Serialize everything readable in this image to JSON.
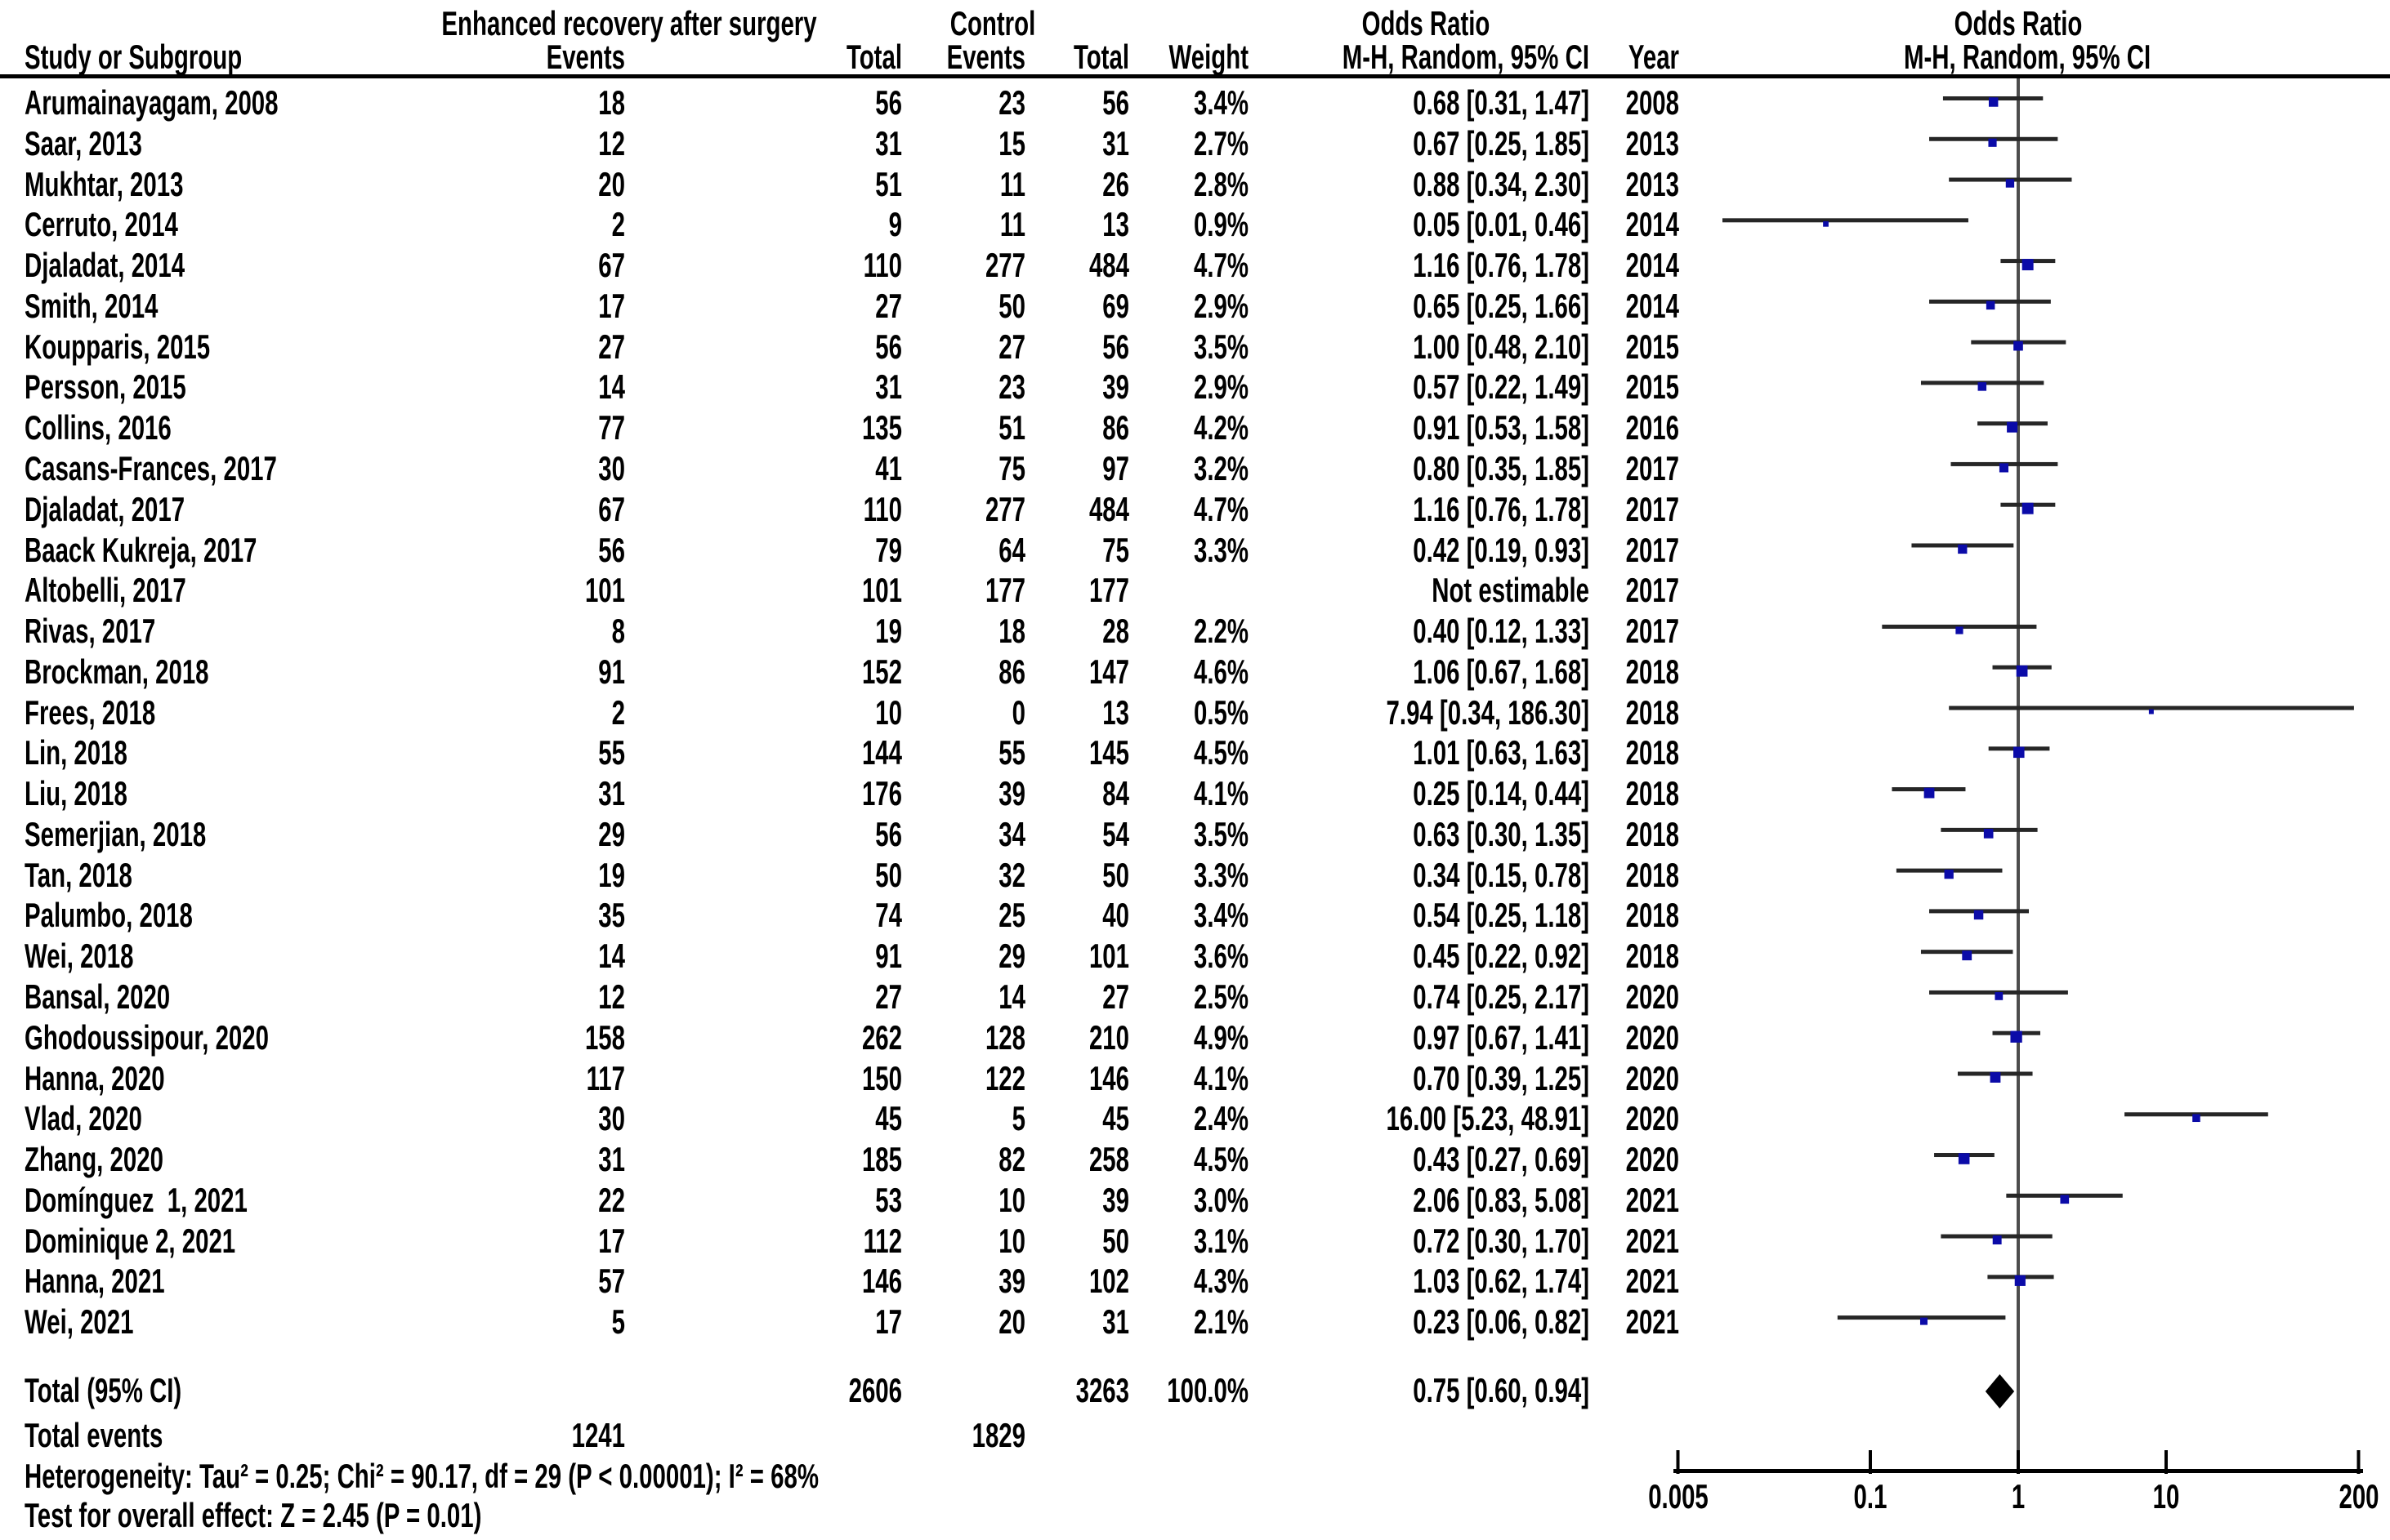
{
  "header": {
    "group_experimental": "Enhanced recovery after surgery",
    "group_control": "Control",
    "or_stat_title": "Odds Ratio",
    "or_plot_title": "Odds Ratio",
    "col_study": "Study or Subgroup",
    "col_events_experimental": "Events",
    "col_total_experimental": "Total",
    "col_events_control": "Events",
    "col_total_control": "Total",
    "col_weight": "Weight",
    "col_method": "M-H, Random, 95% CI",
    "col_year": "Year",
    "col_method_plot": "M-H, Random, 95% CI"
  },
  "footer": {
    "heterogeneity": "Heterogeneity: Tau² = 0.25; Chi² = 90.17, df = 29 (P < 0.00001); I² = 68%",
    "overall_effect": "Test for overall effect: Z = 2.45 (P = 0.01)"
  },
  "colors": {
    "marker": "#0b0ba8",
    "ci_line": "#262626",
    "center_line": "#4d4d4d",
    "axis_line": "#000000",
    "diamond": "#000000",
    "header_rule": "#000000"
  },
  "chart_data": {
    "type": "forest",
    "effect_measure": "Odds Ratio",
    "method": "M-H, Random, 95% CI",
    "x_axis": {
      "scale": "log",
      "min": 0.005,
      "max": 200,
      "ticks": [
        0.005,
        0.1,
        1,
        10,
        200
      ],
      "tick_labels": [
        "0.005",
        "0.1",
        "1",
        "10",
        "200"
      ]
    },
    "studies": [
      {
        "name": "Arumainayagam, 2008",
        "events1": "18",
        "total1": "56",
        "events2": "23",
        "total2": "56",
        "weight": "3.4%",
        "weight_pct": 3.4,
        "or_text": "0.68 [0.31, 1.47]",
        "year": "2008",
        "or": 0.68,
        "ci_low": 0.31,
        "ci_high": 1.47
      },
      {
        "name": "Saar, 2013",
        "events1": "12",
        "total1": "31",
        "events2": "15",
        "total2": "31",
        "weight": "2.7%",
        "weight_pct": 2.7,
        "or_text": "0.67 [0.25, 1.85]",
        "year": "2013",
        "or": 0.67,
        "ci_low": 0.25,
        "ci_high": 1.85
      },
      {
        "name": "Mukhtar, 2013",
        "events1": "20",
        "total1": "51",
        "events2": "11",
        "total2": "26",
        "weight": "2.8%",
        "weight_pct": 2.8,
        "or_text": "0.88 [0.34, 2.30]",
        "year": "2013",
        "or": 0.88,
        "ci_low": 0.34,
        "ci_high": 2.3
      },
      {
        "name": "Cerruto, 2014",
        "events1": "2",
        "total1": "9",
        "events2": "11",
        "total2": "13",
        "weight": "0.9%",
        "weight_pct": 0.9,
        "or_text": "0.05 [0.01, 0.46]",
        "year": "2014",
        "or": 0.05,
        "ci_low": 0.01,
        "ci_high": 0.46
      },
      {
        "name": "Djaladat, 2014",
        "events1": "67",
        "total1": "110",
        "events2": "277",
        "total2": "484",
        "weight": "4.7%",
        "weight_pct": 4.7,
        "or_text": "1.16 [0.76, 1.78]",
        "year": "2014",
        "or": 1.16,
        "ci_low": 0.76,
        "ci_high": 1.78
      },
      {
        "name": "Smith, 2014",
        "events1": "17",
        "total1": "27",
        "events2": "50",
        "total2": "69",
        "weight": "2.9%",
        "weight_pct": 2.9,
        "or_text": "0.65 [0.25, 1.66]",
        "year": "2014",
        "or": 0.65,
        "ci_low": 0.25,
        "ci_high": 1.66
      },
      {
        "name": "Koupparis, 2015",
        "events1": "27",
        "total1": "56",
        "events2": "27",
        "total2": "56",
        "weight": "3.5%",
        "weight_pct": 3.5,
        "or_text": "1.00 [0.48, 2.10]",
        "year": "2015",
        "or": 1.0,
        "ci_low": 0.48,
        "ci_high": 2.1
      },
      {
        "name": "Persson, 2015",
        "events1": "14",
        "total1": "31",
        "events2": "23",
        "total2": "39",
        "weight": "2.9%",
        "weight_pct": 2.9,
        "or_text": "0.57 [0.22, 1.49]",
        "year": "2015",
        "or": 0.57,
        "ci_low": 0.22,
        "ci_high": 1.49
      },
      {
        "name": "Collins, 2016",
        "events1": "77",
        "total1": "135",
        "events2": "51",
        "total2": "86",
        "weight": "4.2%",
        "weight_pct": 4.2,
        "or_text": "0.91 [0.53, 1.58]",
        "year": "2016",
        "or": 0.91,
        "ci_low": 0.53,
        "ci_high": 1.58
      },
      {
        "name": "Casans-Frances, 2017",
        "events1": "30",
        "total1": "41",
        "events2": "75",
        "total2": "97",
        "weight": "3.2%",
        "weight_pct": 3.2,
        "or_text": "0.80 [0.35, 1.85]",
        "year": "2017",
        "or": 0.8,
        "ci_low": 0.35,
        "ci_high": 1.85
      },
      {
        "name": "Djaladat, 2017",
        "events1": "67",
        "total1": "110",
        "events2": "277",
        "total2": "484",
        "weight": "4.7%",
        "weight_pct": 4.7,
        "or_text": "1.16 [0.76, 1.78]",
        "year": "2017",
        "or": 1.16,
        "ci_low": 0.76,
        "ci_high": 1.78
      },
      {
        "name": "Baack Kukreja, 2017",
        "events1": "56",
        "total1": "79",
        "events2": "64",
        "total2": "75",
        "weight": "3.3%",
        "weight_pct": 3.3,
        "or_text": "0.42 [0.19, 0.93]",
        "year": "2017",
        "or": 0.42,
        "ci_low": 0.19,
        "ci_high": 0.93
      },
      {
        "name": "Altobelli, 2017",
        "events1": "101",
        "total1": "101",
        "events2": "177",
        "total2": "177",
        "weight": "",
        "weight_pct": null,
        "or_text": "Not estimable",
        "year": "2017",
        "or": null,
        "ci_low": null,
        "ci_high": null
      },
      {
        "name": "Rivas, 2017",
        "events1": "8",
        "total1": "19",
        "events2": "18",
        "total2": "28",
        "weight": "2.2%",
        "weight_pct": 2.2,
        "or_text": "0.40 [0.12, 1.33]",
        "year": "2017",
        "or": 0.4,
        "ci_low": 0.12,
        "ci_high": 1.33
      },
      {
        "name": "Brockman, 2018",
        "events1": "91",
        "total1": "152",
        "events2": "86",
        "total2": "147",
        "weight": "4.6%",
        "weight_pct": 4.6,
        "or_text": "1.06 [0.67, 1.68]",
        "year": "2018",
        "or": 1.06,
        "ci_low": 0.67,
        "ci_high": 1.68
      },
      {
        "name": "Frees, 2018",
        "events1": "2",
        "total1": "10",
        "events2": "0",
        "total2": "13",
        "weight": "0.5%",
        "weight_pct": 0.5,
        "or_text": "7.94 [0.34, 186.30]",
        "year": "2018",
        "or": 7.94,
        "ci_low": 0.34,
        "ci_high": 186.3
      },
      {
        "name": "Lin, 2018",
        "events1": "55",
        "total1": "144",
        "events2": "55",
        "total2": "145",
        "weight": "4.5%",
        "weight_pct": 4.5,
        "or_text": "1.01 [0.63, 1.63]",
        "year": "2018",
        "or": 1.01,
        "ci_low": 0.63,
        "ci_high": 1.63
      },
      {
        "name": "Liu, 2018",
        "events1": "31",
        "total1": "176",
        "events2": "39",
        "total2": "84",
        "weight": "4.1%",
        "weight_pct": 4.1,
        "or_text": "0.25 [0.14, 0.44]",
        "year": "2018",
        "or": 0.25,
        "ci_low": 0.14,
        "ci_high": 0.44
      },
      {
        "name": "Semerjian, 2018",
        "events1": "29",
        "total1": "56",
        "events2": "34",
        "total2": "54",
        "weight": "3.5%",
        "weight_pct": 3.5,
        "or_text": "0.63 [0.30, 1.35]",
        "year": "2018",
        "or": 0.63,
        "ci_low": 0.3,
        "ci_high": 1.35
      },
      {
        "name": "Tan, 2018",
        "events1": "19",
        "total1": "50",
        "events2": "32",
        "total2": "50",
        "weight": "3.3%",
        "weight_pct": 3.3,
        "or_text": "0.34 [0.15, 0.78]",
        "year": "2018",
        "or": 0.34,
        "ci_low": 0.15,
        "ci_high": 0.78
      },
      {
        "name": "Palumbo, 2018",
        "events1": "35",
        "total1": "74",
        "events2": "25",
        "total2": "40",
        "weight": "3.4%",
        "weight_pct": 3.4,
        "or_text": "0.54 [0.25, 1.18]",
        "year": "2018",
        "or": 0.54,
        "ci_low": 0.25,
        "ci_high": 1.18
      },
      {
        "name": "Wei, 2018",
        "events1": "14",
        "total1": "91",
        "events2": "29",
        "total2": "101",
        "weight": "3.6%",
        "weight_pct": 3.6,
        "or_text": "0.45 [0.22, 0.92]",
        "year": "2018",
        "or": 0.45,
        "ci_low": 0.22,
        "ci_high": 0.92
      },
      {
        "name": "Bansal, 2020",
        "events1": "12",
        "total1": "27",
        "events2": "14",
        "total2": "27",
        "weight": "2.5%",
        "weight_pct": 2.5,
        "or_text": "0.74 [0.25, 2.17]",
        "year": "2020",
        "or": 0.74,
        "ci_low": 0.25,
        "ci_high": 2.17
      },
      {
        "name": "Ghodoussipour, 2020",
        "events1": "158",
        "total1": "262",
        "events2": "128",
        "total2": "210",
        "weight": "4.9%",
        "weight_pct": 4.9,
        "or_text": "0.97 [0.67, 1.41]",
        "year": "2020",
        "or": 0.97,
        "ci_low": 0.67,
        "ci_high": 1.41
      },
      {
        "name": "Hanna, 2020",
        "events1": "117",
        "total1": "150",
        "events2": "122",
        "total2": "146",
        "weight": "4.1%",
        "weight_pct": 4.1,
        "or_text": "0.70 [0.39, 1.25]",
        "year": "2020",
        "or": 0.7,
        "ci_low": 0.39,
        "ci_high": 1.25
      },
      {
        "name": "Vlad, 2020",
        "events1": "30",
        "total1": "45",
        "events2": "5",
        "total2": "45",
        "weight": "2.4%",
        "weight_pct": 2.4,
        "or_text": "16.00 [5.23, 48.91]",
        "year": "2020",
        "or": 16.0,
        "ci_low": 5.23,
        "ci_high": 48.91
      },
      {
        "name": "Zhang, 2020",
        "events1": "31",
        "total1": "185",
        "events2": "82",
        "total2": "258",
        "weight": "4.5%",
        "weight_pct": 4.5,
        "or_text": "0.43 [0.27, 0.69]",
        "year": "2020",
        "or": 0.43,
        "ci_low": 0.27,
        "ci_high": 0.69
      },
      {
        "name": "Domínguez  1, 2021",
        "events1": "22",
        "total1": "53",
        "events2": "10",
        "total2": "39",
        "weight": "3.0%",
        "weight_pct": 3.0,
        "or_text": "2.06 [0.83, 5.08]",
        "year": "2021",
        "or": 2.06,
        "ci_low": 0.83,
        "ci_high": 5.08
      },
      {
        "name": "Dominique 2, 2021",
        "events1": "17",
        "total1": "112",
        "events2": "10",
        "total2": "50",
        "weight": "3.1%",
        "weight_pct": 3.1,
        "or_text": "0.72 [0.30, 1.70]",
        "year": "2021",
        "or": 0.72,
        "ci_low": 0.3,
        "ci_high": 1.7
      },
      {
        "name": "Hanna, 2021",
        "events1": "57",
        "total1": "146",
        "events2": "39",
        "total2": "102",
        "weight": "4.3%",
        "weight_pct": 4.3,
        "or_text": "1.03 [0.62, 1.74]",
        "year": "2021",
        "or": 1.03,
        "ci_low": 0.62,
        "ci_high": 1.74
      },
      {
        "name": "Wei, 2021",
        "events1": "5",
        "total1": "17",
        "events2": "20",
        "total2": "31",
        "weight": "2.1%",
        "weight_pct": 2.1,
        "or_text": "0.23 [0.06, 0.82]",
        "year": "2021",
        "or": 0.23,
        "ci_low": 0.06,
        "ci_high": 0.82
      }
    ],
    "total": {
      "label": "Total (95% CI)",
      "total_experimental": "2606",
      "total_control": "3263",
      "weight": "100.0%",
      "or_text": "0.75 [0.60, 0.94]",
      "or": 0.75,
      "ci_low": 0.6,
      "ci_high": 0.94
    },
    "total_events": {
      "label": "Total events",
      "experimental": "1241",
      "control": "1829"
    }
  }
}
